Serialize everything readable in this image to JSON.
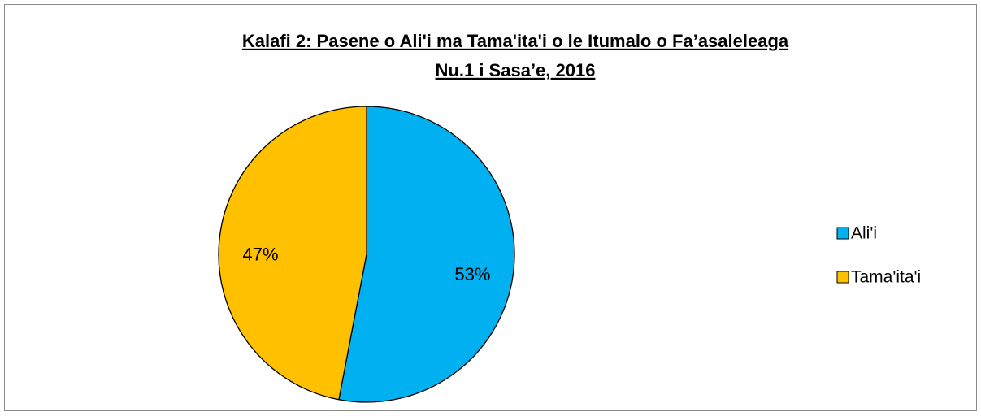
{
  "chart_data": {
    "type": "pie",
    "title": [
      "Kalafi 2: Pasene o Ali'i ma Tama'ita'i o le Itumalo o Fa’asaleleaga",
      "Nu.1 i Sasa’e, 2016"
    ],
    "categories": [
      "Ali'i",
      "Tama'ita'i"
    ],
    "values": [
      53,
      47
    ],
    "value_labels": [
      "53%",
      "47%"
    ],
    "colors": [
      "#00b0f0",
      "#ffc000"
    ],
    "legend": "right"
  }
}
